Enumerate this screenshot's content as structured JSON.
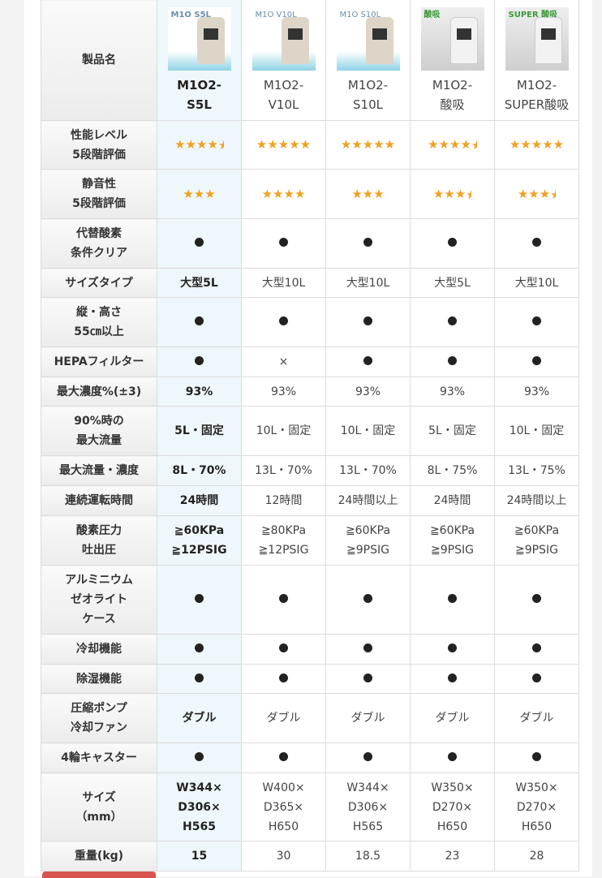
{
  "products": [
    {
      "name_l1": "M1O2-",
      "name_l2": "S5L",
      "thumb_text": "M1O S5L",
      "thumb_style": "blue"
    },
    {
      "name_l1": "M1O2-",
      "name_l2": "V10L",
      "thumb_text": "M1O V10L",
      "thumb_style": "blue"
    },
    {
      "name_l1": "M1O2-",
      "name_l2": "S10L",
      "thumb_text": "M1O S10L",
      "thumb_style": "blue"
    },
    {
      "name_l1": "M1O2-",
      "name_l2": "酸吸",
      "thumb_text": "酸吸",
      "thumb_style": "gray"
    },
    {
      "name_l1": "M1O2-",
      "name_l2": "SUPER酸吸",
      "thumb_text": "SUPER 酸吸",
      "thumb_style": "gray"
    }
  ],
  "header_label": "製品名",
  "star_color": "#f0a020",
  "rows": [
    {
      "label": [
        "性能レベル",
        "5段階評価"
      ],
      "type": "stars",
      "values": [
        4.5,
        5,
        5,
        4.5,
        5
      ]
    },
    {
      "label": [
        "静音性",
        "5段階評価"
      ],
      "type": "stars",
      "values": [
        3,
        4,
        3,
        3.5,
        3.5
      ]
    },
    {
      "label": [
        "代替酸素",
        "条件クリア"
      ],
      "type": "text",
      "values": [
        "●",
        "●",
        "●",
        "●",
        "●"
      ]
    },
    {
      "label": [
        "サイズタイプ"
      ],
      "type": "text",
      "values": [
        "大型5L",
        "大型10L",
        "大型10L",
        "大型5L",
        "大型10L"
      ]
    },
    {
      "label": [
        "縦・高さ",
        "55㎝以上"
      ],
      "type": "text",
      "values": [
        "●",
        "●",
        "●",
        "●",
        "●"
      ]
    },
    {
      "label": [
        "HEPAフィルター"
      ],
      "type": "text",
      "values": [
        "●",
        "×",
        "●",
        "●",
        "●"
      ]
    },
    {
      "label": [
        "最大濃度%(±3)"
      ],
      "type": "text",
      "values": [
        "93%",
        "93%",
        "93%",
        "93%",
        "93%"
      ]
    },
    {
      "label": [
        "90%時の",
        "最大流量"
      ],
      "type": "text",
      "values": [
        "5L・固定",
        "10L・固定",
        "10L・固定",
        "5L・固定",
        "10L・固定"
      ]
    },
    {
      "label": [
        "最大流量・濃度"
      ],
      "type": "text",
      "values": [
        "8L・70%",
        "13L・70%",
        "13L・70%",
        "8L・75%",
        "13L・75%"
      ]
    },
    {
      "label": [
        "連続運転時間"
      ],
      "type": "text",
      "values": [
        "24時間",
        "12時間",
        "24時間以上",
        "24時間",
        "24時間以上"
      ]
    },
    {
      "label": [
        "酸素圧力",
        "吐出圧"
      ],
      "type": "text",
      "values": [
        "≧60KPa\n≧12PSIG",
        "≧80KPa\n≧12PSIG",
        "≧60KPa\n≧9PSIG",
        "≧60KPa\n≧9PSIG",
        "≧60KPa\n≧9PSIG"
      ]
    },
    {
      "label": [
        "アルミニウム",
        "ゼオライト",
        "ケース"
      ],
      "type": "text",
      "values": [
        "●",
        "●",
        "●",
        "●",
        "●"
      ]
    },
    {
      "label": [
        "冷却機能"
      ],
      "type": "text",
      "values": [
        "●",
        "●",
        "●",
        "●",
        "●"
      ]
    },
    {
      "label": [
        "除湿機能"
      ],
      "type": "text",
      "values": [
        "●",
        "●",
        "●",
        "●",
        "●"
      ]
    },
    {
      "label": [
        "圧縮ポンプ",
        "冷却ファン"
      ],
      "type": "text",
      "values": [
        "ダブル",
        "ダブル",
        "ダブル",
        "ダブル",
        "ダブル"
      ]
    },
    {
      "label": [
        "4輪キャスター"
      ],
      "type": "text",
      "values": [
        "●",
        "●",
        "●",
        "●",
        "●"
      ]
    },
    {
      "label": [
        "サイズ",
        "（mm）"
      ],
      "type": "text",
      "values": [
        "W344×\nD306×\nH565",
        "W400×\nD365×\nH650",
        "W344×\nD306×\nH565",
        "W350×\nD270×\nH650",
        "W350×\nD270×\nH650"
      ]
    },
    {
      "label": [
        "重量(kg)"
      ],
      "type": "text",
      "values": [
        "15",
        "30",
        "18.5",
        "23",
        "28"
      ]
    }
  ]
}
